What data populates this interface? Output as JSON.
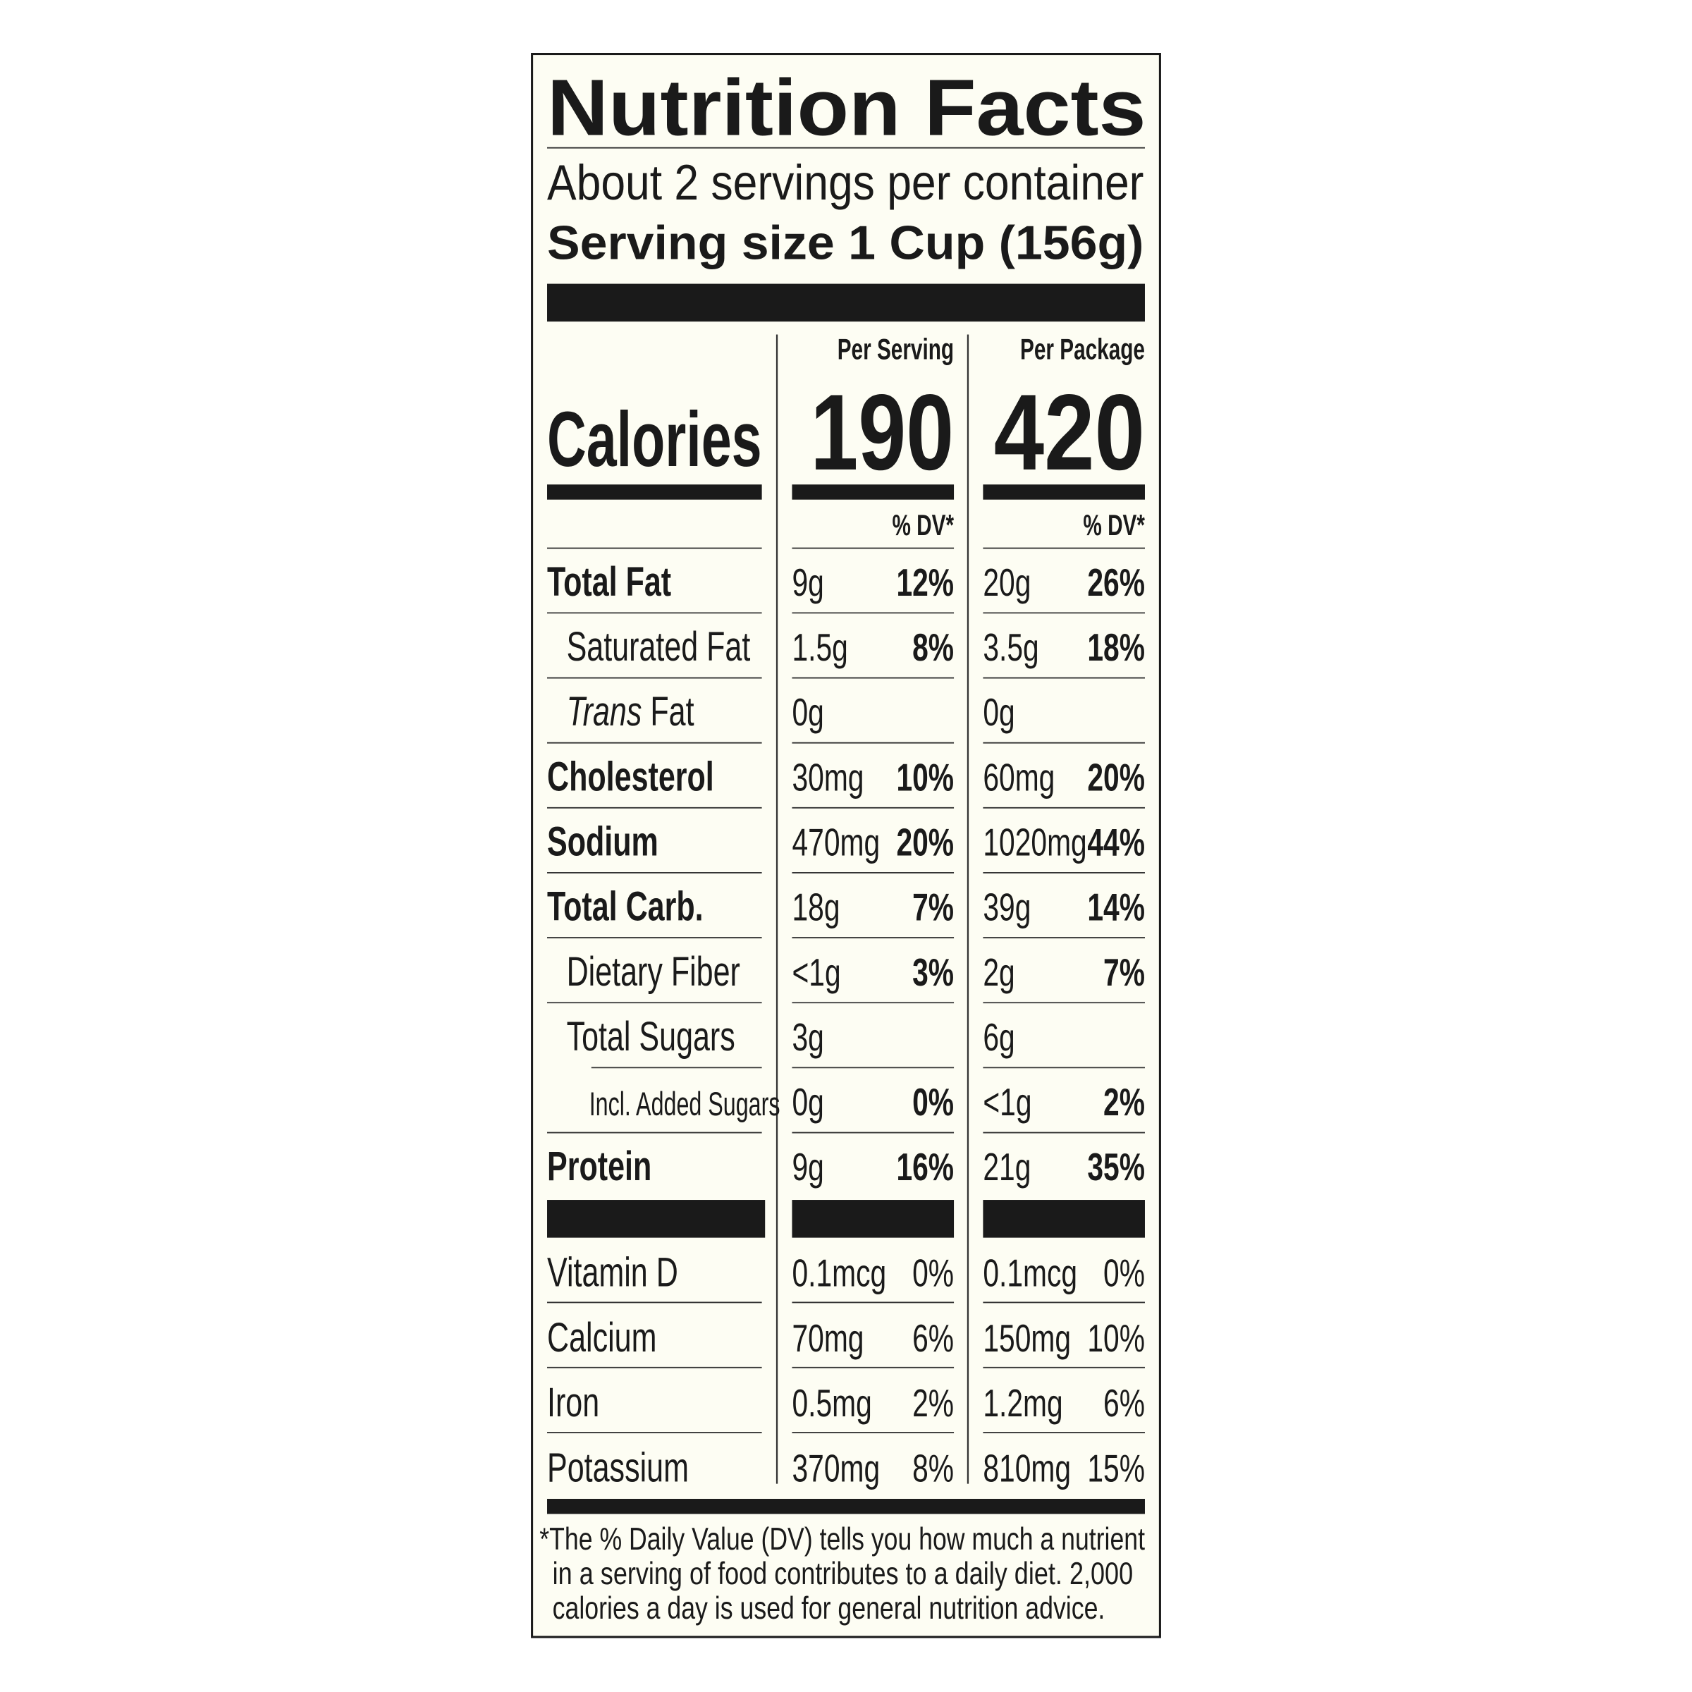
{
  "header": {
    "title": "Nutrition Facts",
    "servings": "About 2 servings per container",
    "serving_size": "Serving size 1 Cup (156g)"
  },
  "calories": {
    "label": "Calories",
    "per_serving": {
      "heading": "Per Serving",
      "value": "190",
      "dv_heading": "% DV*"
    },
    "per_package": {
      "heading": "Per Package",
      "value": "420",
      "dv_heading": "% DV*"
    }
  },
  "nutrients": [
    {
      "name": "Total Fat",
      "per_serving": {
        "amount": "9g",
        "dv": "12%"
      },
      "per_package": {
        "amount": "20g",
        "dv": "26%"
      }
    },
    {
      "name": "Saturated Fat",
      "per_serving": {
        "amount": "1.5g",
        "dv": "8%"
      },
      "per_package": {
        "amount": "3.5g",
        "dv": "18%"
      }
    },
    {
      "name_italic": "Trans",
      "name": "Fat",
      "per_serving": {
        "amount": "0g"
      },
      "per_package": {
        "amount": "0g"
      }
    },
    {
      "name": "Cholesterol",
      "per_serving": {
        "amount": "30mg",
        "dv": "10%"
      },
      "per_package": {
        "amount": "60mg",
        "dv": "20%"
      }
    },
    {
      "name": "Sodium",
      "per_serving": {
        "amount": "470mg",
        "dv": "20%"
      },
      "per_package": {
        "amount": "1020mg",
        "dv": "44%"
      }
    },
    {
      "name": "Total Carb.",
      "per_serving": {
        "amount": "18g",
        "dv": "7%"
      },
      "per_package": {
        "amount": "39g",
        "dv": "14%"
      }
    },
    {
      "name": "Dietary Fiber",
      "per_serving": {
        "amount": "<1g",
        "dv": "3%"
      },
      "per_package": {
        "amount": "2g",
        "dv": "7%"
      }
    },
    {
      "name": "Total Sugars",
      "per_serving": {
        "amount": "3g"
      },
      "per_package": {
        "amount": "6g"
      }
    },
    {
      "name": "Incl. Added Sugars",
      "per_serving": {
        "amount": "0g",
        "dv": "0%"
      },
      "per_package": {
        "amount": "<1g",
        "dv": "2%"
      }
    },
    {
      "name": "Protein",
      "per_serving": {
        "amount": "9g",
        "dv": "16%"
      },
      "per_package": {
        "amount": "21g",
        "dv": "35%"
      }
    }
  ],
  "vitamins": [
    {
      "name": "Vitamin D",
      "per_serving": {
        "amount": "0.1mcg",
        "dv": "0%"
      },
      "per_package": {
        "amount": "0.1mcg",
        "dv": "0%"
      }
    },
    {
      "name": "Calcium",
      "per_serving": {
        "amount": "70mg",
        "dv": "6%"
      },
      "per_package": {
        "amount": "150mg",
        "dv": "10%"
      }
    },
    {
      "name": "Iron",
      "per_serving": {
        "amount": "0.5mg",
        "dv": "2%"
      },
      "per_package": {
        "amount": "1.2mg",
        "dv": "6%"
      }
    },
    {
      "name": "Potassium",
      "per_serving": {
        "amount": "370mg",
        "dv": "8%"
      },
      "per_package": {
        "amount": "810mg",
        "dv": "15%"
      }
    }
  ],
  "footnote": [
    "*The % Daily Value (DV) tells you how much a nutrient",
    "in a serving of food contributes to a daily diet. 2,000",
    "calories a day is used for general nutrition advice."
  ]
}
